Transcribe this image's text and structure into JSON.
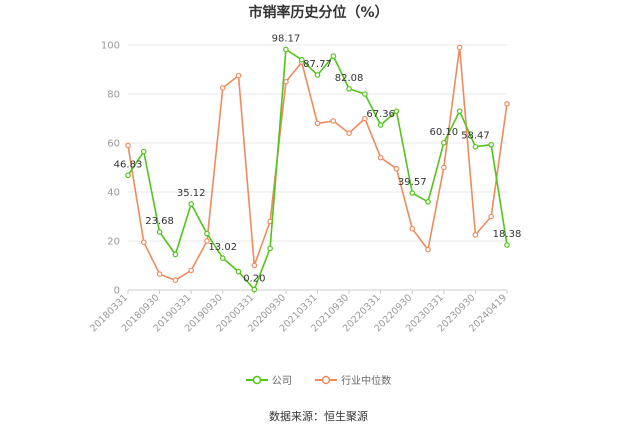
{
  "title": "市销率历史分位（%）",
  "source_label": "数据来源：恒生聚源",
  "colors": {
    "company": "#52c41a",
    "industry": "#f08a5d",
    "grid": "#e8e8e8",
    "axis": "#999999"
  },
  "chart_data": {
    "type": "line",
    "title": "市销率历史分位（%）",
    "ylim": [
      0,
      100
    ],
    "yticks": [
      0,
      20,
      40,
      60,
      80,
      100
    ],
    "grid": true,
    "legend_position": "bottom",
    "x_tick_labels": [
      "20180331",
      "20180930",
      "20190331",
      "20190930",
      "20200331",
      "20200930",
      "20210331",
      "20210930",
      "20220331",
      "20220930",
      "20230331",
      "20230930",
      "20240419"
    ],
    "categories": [
      "20180331",
      "20180630",
      "20180930",
      "20181231",
      "20190331",
      "20190630",
      "20190930",
      "20191231",
      "20200331",
      "20200630",
      "20200930",
      "20201231",
      "20210331",
      "20210630",
      "20210930",
      "20211231",
      "20220331",
      "20220630",
      "20220930",
      "20221231",
      "20230331",
      "20230630",
      "20230930",
      "20231231",
      "20240419"
    ],
    "series": [
      {
        "name": "公司",
        "values": [
          46.83,
          56.5,
          23.68,
          14.5,
          35.12,
          23.0,
          13.02,
          7.5,
          0.2,
          17.0,
          98.17,
          94.0,
          87.77,
          95.5,
          82.08,
          80.0,
          67.36,
          73.0,
          39.57,
          36.0,
          60.1,
          73.0,
          58.47,
          59.3,
          18.38
        ],
        "labels": {
          "0": "46.83",
          "2": "23.68",
          "4": "35.12",
          "6": "13.02",
          "8": "0.20",
          "10": "98.17",
          "12": "87.77",
          "14": "82.08",
          "16": "67.36",
          "18": "39.57",
          "20": "60.10",
          "22": "58.47",
          "24": "18.38"
        }
      },
      {
        "name": "行业中位数",
        "values": [
          59.0,
          19.5,
          6.5,
          4.0,
          8.0,
          20.0,
          82.5,
          87.5,
          10.0,
          28.0,
          85.0,
          93.0,
          68.0,
          69.0,
          64.0,
          70.0,
          54.0,
          49.5,
          25.0,
          16.5,
          50.0,
          99.0,
          22.5,
          30.0,
          76.0
        ]
      }
    ]
  }
}
